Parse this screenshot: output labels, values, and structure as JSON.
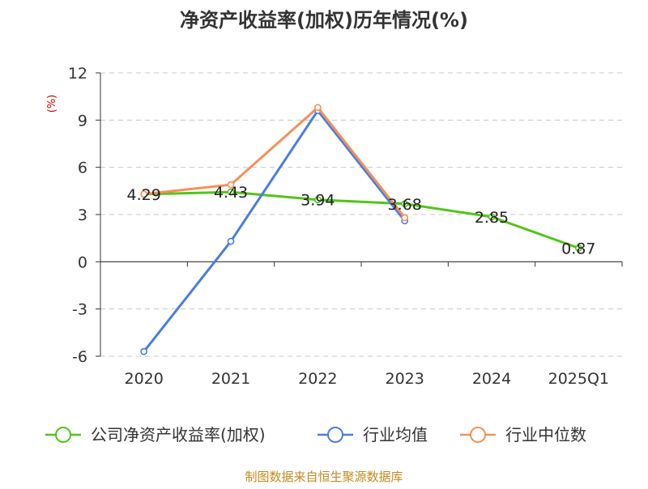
{
  "chart_data": {
    "type": "line",
    "title": "净资产收益率(加权)历年情况(%)",
    "ylabel": "(%)",
    "xlabel": "",
    "categories": [
      "2020",
      "2021",
      "2022",
      "2023",
      "2024",
      "2025Q1"
    ],
    "ylim": [
      -6,
      12
    ],
    "yticks": [
      -6,
      -3,
      0,
      3,
      6,
      9,
      12
    ],
    "grid": true,
    "legend_position": "bottom",
    "series": [
      {
        "name": "公司净资产收益率(加权)",
        "color": "#52c41a",
        "values": [
          4.29,
          4.43,
          3.94,
          3.68,
          2.85,
          0.87
        ],
        "data_labels": [
          "4.29",
          "4.43",
          "3.94",
          "3.68",
          "2.85",
          "0.87"
        ]
      },
      {
        "name": "行业均值",
        "color": "#4a7de0",
        "values": [
          -5.7,
          1.3,
          9.6,
          2.6,
          null,
          null
        ]
      },
      {
        "name": "行业中位数",
        "color": "#f5905a",
        "values": [
          4.3,
          4.9,
          9.8,
          2.8,
          null,
          null
        ]
      }
    ]
  },
  "source_note": "制图数据来自恒生聚源数据库"
}
